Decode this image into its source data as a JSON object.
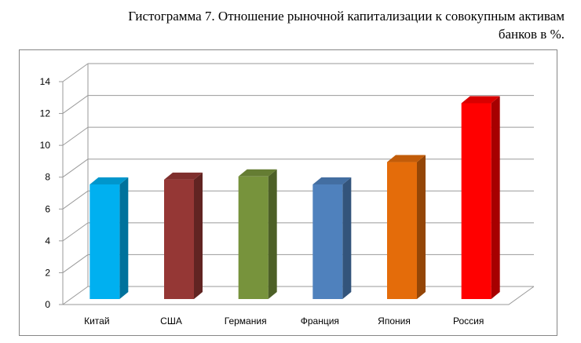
{
  "chart_data": {
    "type": "bar",
    "title_line1": "Гистограмма 7. Отношение рыночной капитализации к совокупным активам",
    "title_line2": "банков в %.",
    "xlabel": "",
    "ylabel": "",
    "ylim": [
      0,
      14
    ],
    "yticks": [
      "0",
      "2",
      "4",
      "6",
      "8",
      "10",
      "12",
      "14"
    ],
    "grid": true,
    "legend": "none",
    "categories": [
      "Китай",
      "США",
      "Германия",
      "Франция",
      "Япония",
      "Россия"
    ],
    "values": [
      7.2,
      7.5,
      7.7,
      7.2,
      8.6,
      12.3
    ],
    "colors": [
      "#00b0f0",
      "#953735",
      "#77933c",
      "#4f81bd",
      "#e46c0a",
      "#ff0000"
    ]
  }
}
